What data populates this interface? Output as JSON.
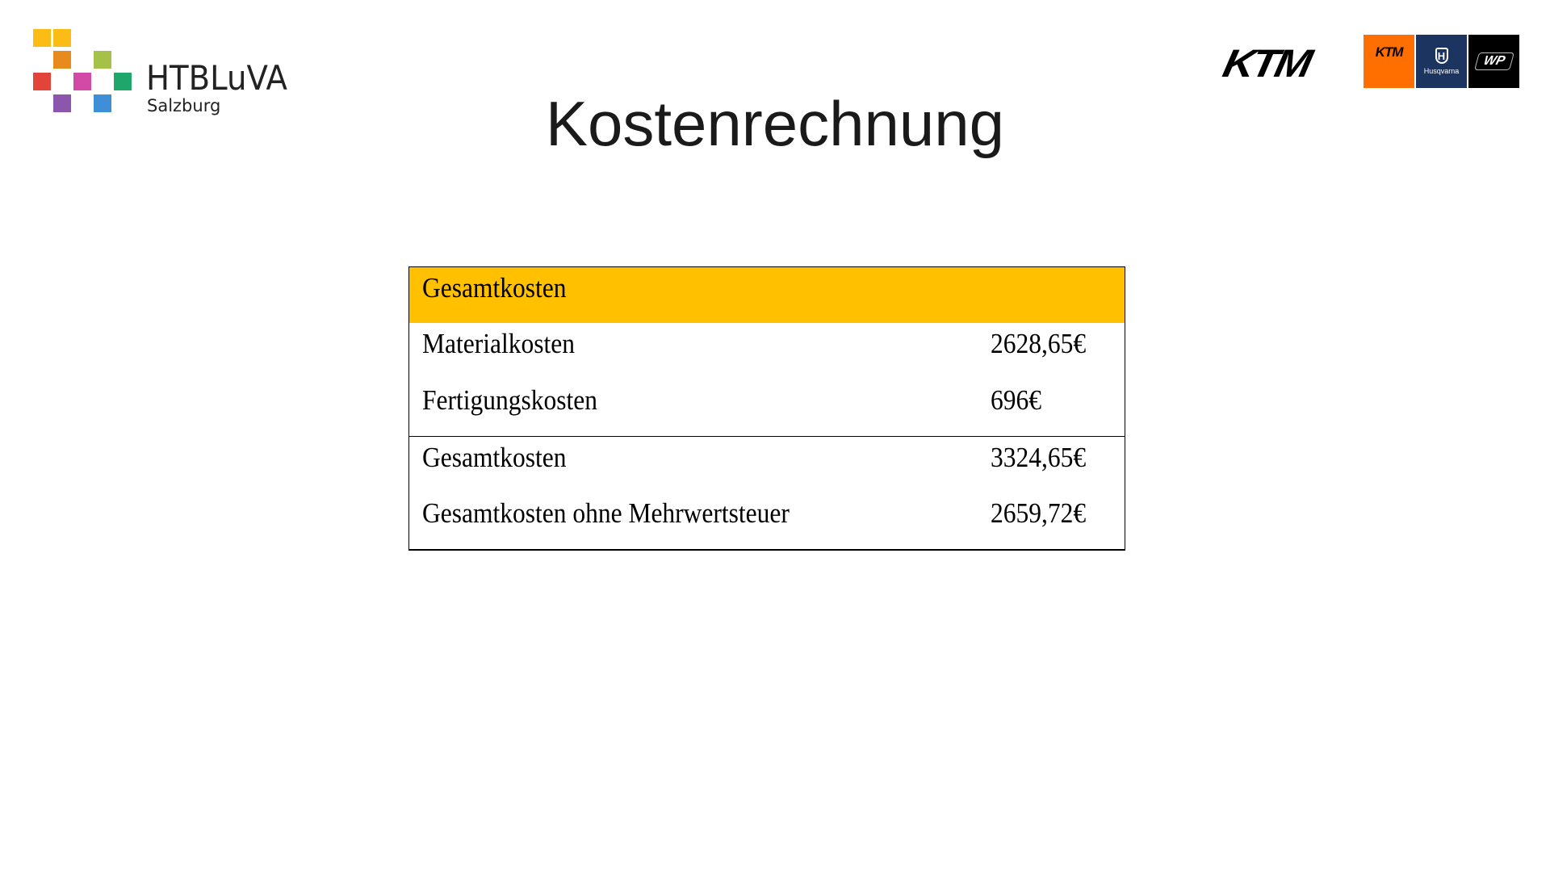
{
  "slide": {
    "title": "Kostenrechnung"
  },
  "logos": {
    "school_name": "HTBLuVA",
    "school_location": "Salzburg",
    "square_colors": [
      "#fbbd15",
      "#fbbd15",
      "#e78b1f",
      "#a5c14a",
      "#e2443a",
      "#d34aa6",
      "#1ea66b",
      "#8b56ab",
      "#3f8fd6"
    ],
    "brand_main": "KTM",
    "brand_boxes": [
      {
        "label": "KTM",
        "color": "#ff6f00"
      },
      {
        "label": "Husqvarna",
        "color": "#1c3560"
      },
      {
        "label": "WP",
        "color": "#000000"
      }
    ]
  },
  "table": {
    "header": "Gesamtkosten",
    "header_color": "#ffc000",
    "rows": [
      {
        "label": "Materialkosten",
        "value": "2628,65€"
      },
      {
        "label": "Fertigungskosten",
        "value": "696€"
      },
      {
        "label": "Gesamtkosten",
        "value": "3324,65€"
      },
      {
        "label": "Gesamtkosten ohne Mehrwertsteuer",
        "value": "2659,72€"
      }
    ]
  }
}
